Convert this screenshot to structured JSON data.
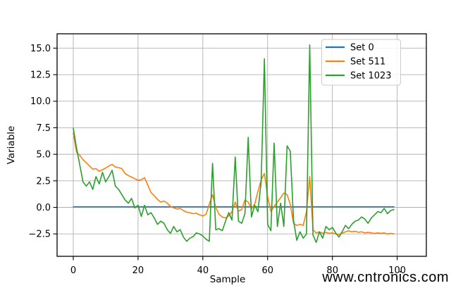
{
  "watermark": {
    "text": "www.cntronics.com",
    "color": "#aed9ae"
  },
  "chart_data": {
    "type": "line",
    "title": "",
    "xlabel": "Sample",
    "ylabel": "Variable",
    "x_note": "x = sample index 0..99 for every series",
    "xlim": [
      -5,
      109
    ],
    "ylim": [
      -4.61,
      16.35
    ],
    "xticks": [
      0,
      20,
      40,
      60,
      80,
      100
    ],
    "yticks": [
      -2.5,
      0.0,
      2.5,
      5.0,
      7.5,
      10.0,
      12.5,
      15.0
    ],
    "grid": true,
    "grid_color": "#b0b0b0",
    "frame_color": "#000000",
    "legend_position": "upper right",
    "series": [
      {
        "name": "Set 0",
        "color": "#1f77b4",
        "values": [
          0.05,
          0.05,
          0.05,
          0.05,
          0.05,
          0.05,
          0.05,
          0.05,
          0.05,
          0.05,
          0.05,
          0.05,
          0.05,
          0.05,
          0.05,
          0.05,
          0.05,
          0.05,
          0.05,
          0.05,
          0.05,
          0.05,
          0.05,
          0.05,
          0.05,
          0.05,
          0.05,
          0.05,
          0.05,
          0.05,
          0.05,
          0.05,
          0.05,
          0.05,
          0.05,
          0.05,
          0.05,
          0.05,
          0.05,
          0.05,
          0.05,
          0.05,
          0.05,
          0.05,
          0.05,
          0.05,
          0.05,
          0.05,
          0.05,
          0.05,
          0.05,
          0.05,
          0.05,
          0.05,
          0.05,
          0.05,
          0.05,
          0.05,
          0.05,
          0.05,
          0.05,
          0.05,
          0.05,
          0.05,
          0.05,
          0.05,
          0.05,
          0.05,
          0.05,
          0.05,
          0.05,
          0.05,
          0.05,
          0.05,
          0.05,
          0.05,
          0.05,
          0.05,
          0.05,
          0.05,
          0.05,
          0.05,
          0.05,
          0.05,
          0.05,
          0.05,
          0.05,
          0.05,
          0.05,
          0.05,
          0.05,
          0.05,
          0.05,
          0.05,
          0.05,
          0.05,
          0.05,
          0.05,
          0.05,
          0.05
        ]
      },
      {
        "name": "Set 511",
        "color": "#ff7f0e",
        "values": [
          7.0,
          5.2,
          4.9,
          4.5,
          4.2,
          3.9,
          3.6,
          3.65,
          3.4,
          3.55,
          3.7,
          3.9,
          4.05,
          3.8,
          3.75,
          3.65,
          3.2,
          3.0,
          2.85,
          2.7,
          2.55,
          2.6,
          2.8,
          2.1,
          1.4,
          1.1,
          0.75,
          0.5,
          0.6,
          0.4,
          0.1,
          -0.05,
          -0.15,
          -0.1,
          -0.3,
          -0.45,
          -0.5,
          -0.6,
          -0.55,
          -0.7,
          -0.8,
          -0.65,
          0.3,
          1.2,
          0.0,
          -0.65,
          -0.9,
          -1.0,
          -0.8,
          -0.4,
          0.5,
          -0.35,
          -0.2,
          0.7,
          0.5,
          -0.15,
          0.3,
          1.5,
          2.6,
          3.2,
          1.0,
          -0.4,
          0.1,
          0.5,
          0.9,
          1.35,
          1.2,
          0.3,
          -1.5,
          -1.7,
          -1.6,
          -1.7,
          -0.4,
          2.9,
          -2.1,
          -2.4,
          -2.3,
          -2.45,
          -2.35,
          -2.45,
          -2.4,
          -2.5,
          -2.55,
          -2.45,
          -2.3,
          -2.2,
          -2.3,
          -2.25,
          -2.35,
          -2.3,
          -2.4,
          -2.35,
          -2.4,
          -2.45,
          -2.4,
          -2.45,
          -2.4,
          -2.5,
          -2.45,
          -2.5
        ]
      },
      {
        "name": "Set 1023",
        "color": "#2ca02c",
        "values": [
          7.45,
          5.6,
          4.0,
          2.4,
          2.0,
          2.4,
          1.7,
          2.9,
          2.2,
          3.3,
          2.4,
          2.9,
          3.5,
          2.0,
          1.7,
          1.2,
          0.7,
          0.4,
          0.85,
          -0.05,
          0.2,
          -0.85,
          0.2,
          -0.7,
          -0.5,
          -1.0,
          -1.6,
          -1.3,
          -1.5,
          -2.1,
          -2.45,
          -1.8,
          -2.3,
          -2.1,
          -2.8,
          -3.2,
          -2.9,
          -2.75,
          -2.4,
          -2.5,
          -2.7,
          -3.0,
          -3.2,
          4.15,
          -2.1,
          -2.0,
          -2.2,
          -1.3,
          -0.5,
          -1.2,
          4.75,
          -1.3,
          -1.5,
          -0.6,
          6.6,
          -0.9,
          0.2,
          -0.4,
          2.4,
          14.0,
          -1.6,
          -2.2,
          6.05,
          -1.8,
          0.4,
          -1.8,
          5.8,
          5.3,
          -1.2,
          -3.1,
          -2.3,
          -2.9,
          -2.5,
          15.3,
          -2.6,
          -3.3,
          -2.3,
          -2.9,
          -1.8,
          -2.1,
          -1.9,
          -2.4,
          -2.8,
          -2.3,
          -1.7,
          -2.0,
          -1.6,
          -1.3,
          -1.2,
          -0.9,
          -1.1,
          -1.5,
          -1.0,
          -0.7,
          -0.4,
          -0.5,
          -0.1,
          -0.6,
          -0.3,
          -0.2
        ]
      }
    ]
  }
}
